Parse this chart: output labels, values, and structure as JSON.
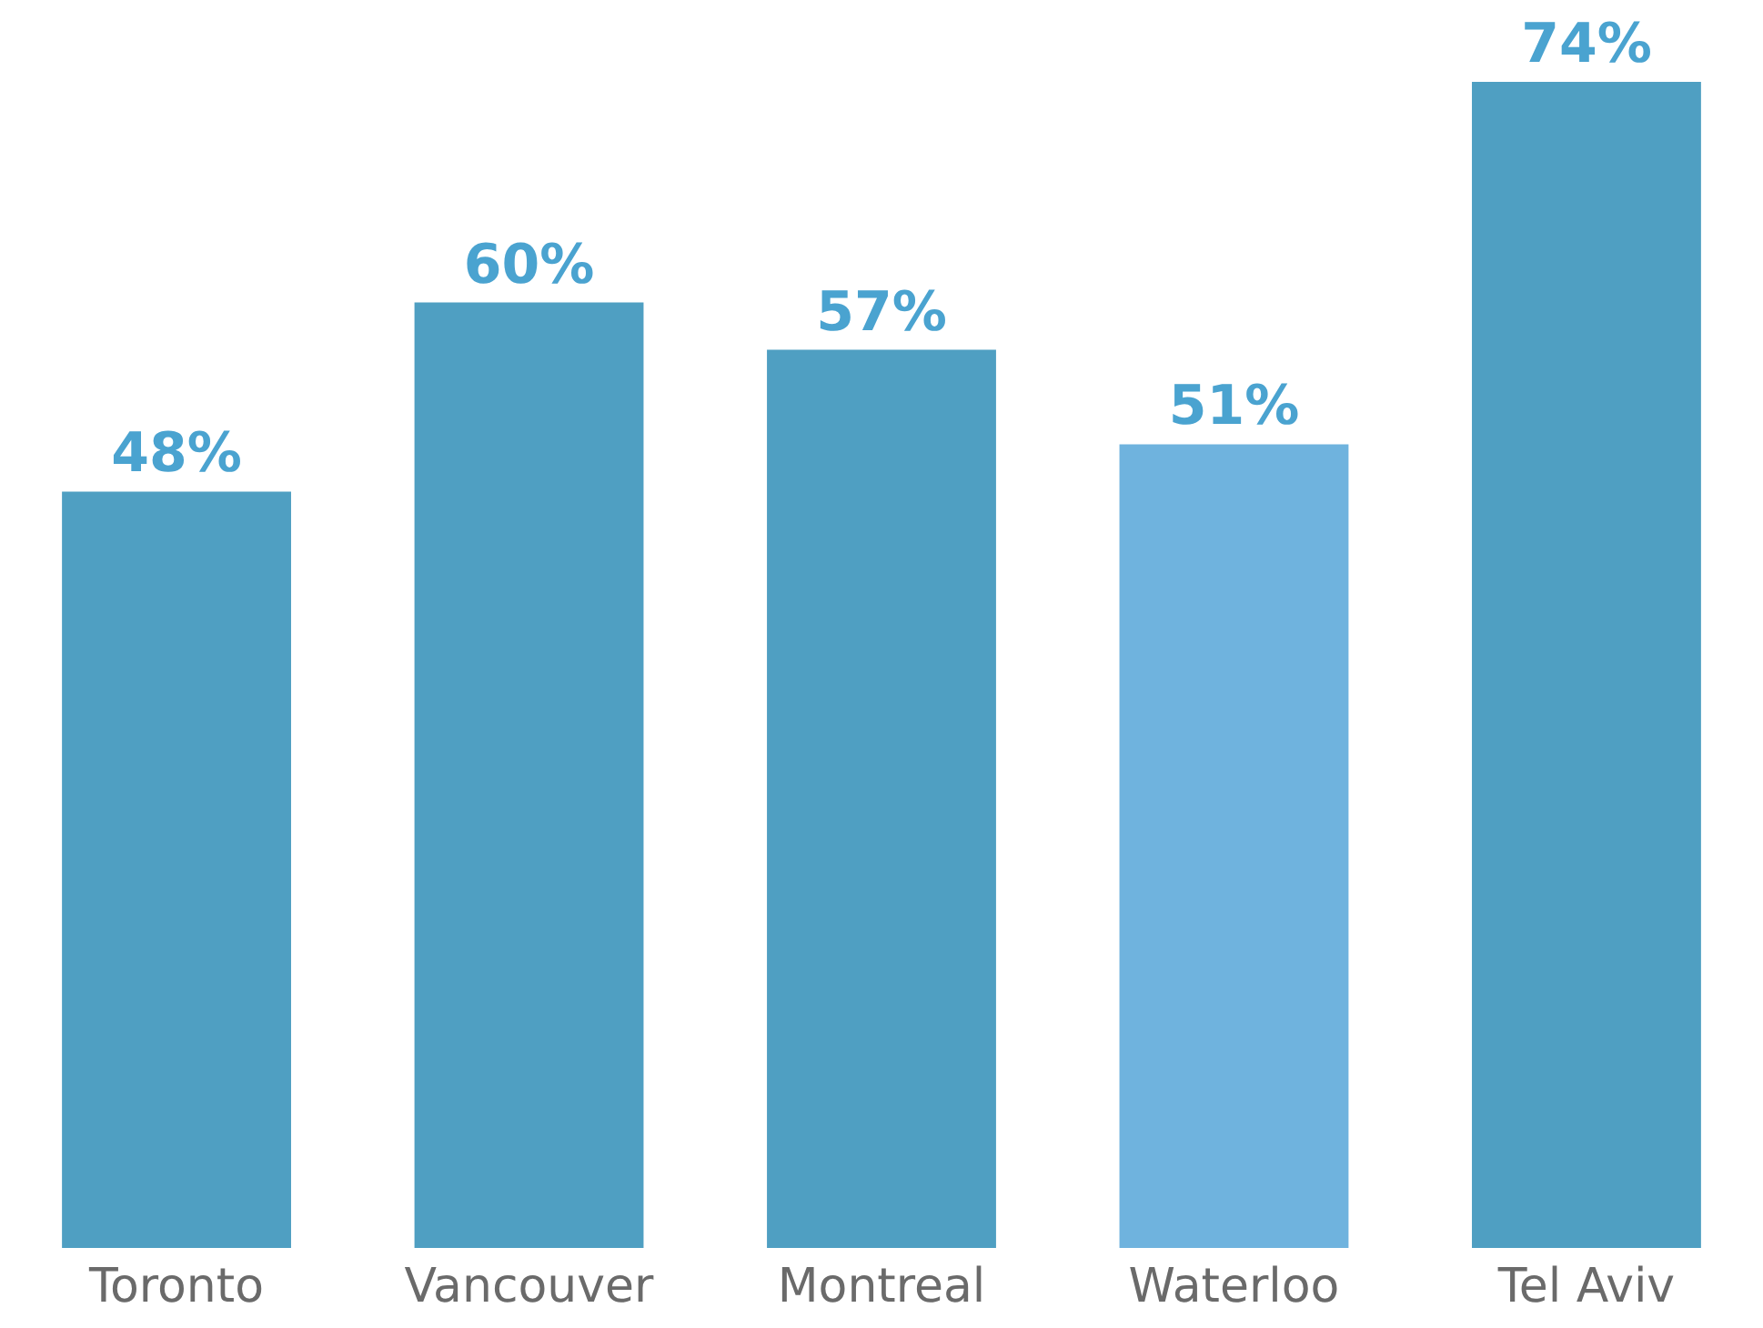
{
  "chart_data": {
    "type": "bar",
    "categories": [
      "Toronto",
      "Vancouver",
      "Montreal",
      "Waterloo",
      "Tel Aviv"
    ],
    "values": [
      48,
      60,
      57,
      51,
      74
    ],
    "colors": [
      "#4f9fc2",
      "#4f9fc2",
      "#4f9fc2",
      "#6fb3de",
      "#4f9fc2"
    ],
    "value_labels": [
      "48%",
      "60%",
      "57%",
      "51%",
      "74%"
    ]
  }
}
